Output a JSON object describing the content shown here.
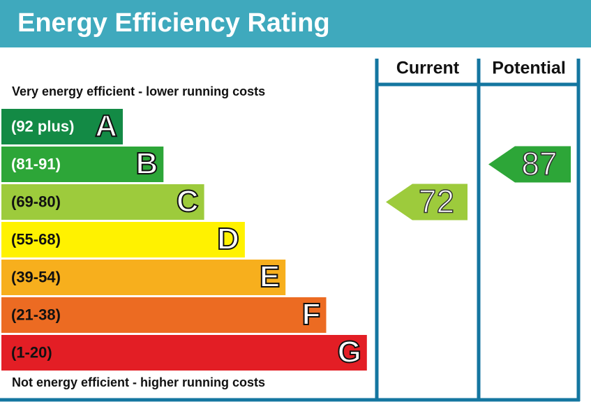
{
  "title": "Energy Efficiency Rating",
  "top_label": "Very energy efficient - lower running costs",
  "bottom_label": "Not energy efficient - higher running costs",
  "columns": [
    "Current",
    "Potential"
  ],
  "bands": [
    {
      "range": "(92 plus)",
      "letter": "A",
      "color": "#138a45",
      "text_color": "#ffffff"
    },
    {
      "range": "(81-91)",
      "letter": "B",
      "color": "#2da638",
      "text_color": "#ffffff"
    },
    {
      "range": "(69-80)",
      "letter": "C",
      "color": "#9dcb3c",
      "text_color": "#111111"
    },
    {
      "range": "(55-68)",
      "letter": "D",
      "color": "#fff200",
      "text_color": "#111111"
    },
    {
      "range": "(39-54)",
      "letter": "E",
      "color": "#f7af1d",
      "text_color": "#111111"
    },
    {
      "range": "(21-38)",
      "letter": "F",
      "color": "#ec6b22",
      "text_color": "#111111"
    },
    {
      "range": "(1-20)",
      "letter": "G",
      "color": "#e31e25",
      "text_color": "#111111"
    }
  ],
  "current": {
    "value": 72,
    "color": "#9dcb3c"
  },
  "potential": {
    "value": 87,
    "color": "#2da638"
  }
}
